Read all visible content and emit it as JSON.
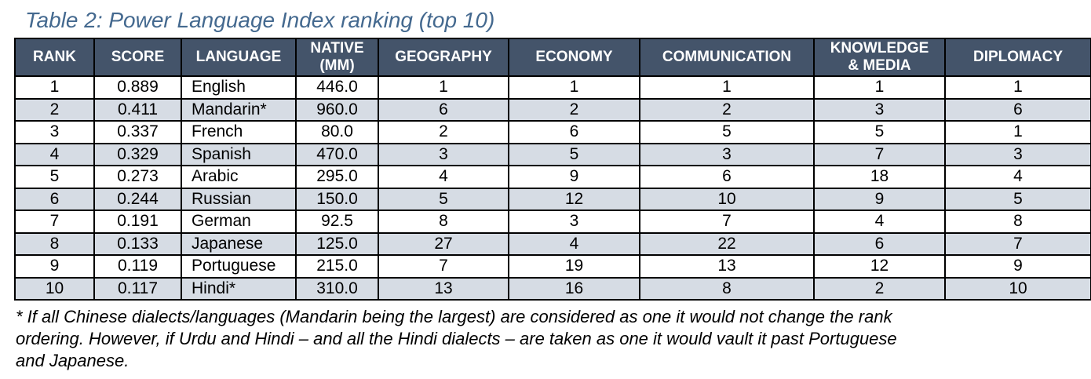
{
  "title": "Table 2: Power Language Index ranking (top 10)",
  "table": {
    "columns": [
      {
        "label": "RANK"
      },
      {
        "label": "SCORE"
      },
      {
        "label": "LANGUAGE"
      },
      {
        "label": "NATIVE\n(MM)"
      },
      {
        "label": "GEOGRAPHY"
      },
      {
        "label": "ECONOMY"
      },
      {
        "label": "COMMUNICATION"
      },
      {
        "label": "KNOWLEDGE\n& MEDIA"
      },
      {
        "label": "DIPLOMACY"
      }
    ],
    "rows": [
      [
        "1",
        "0.889",
        "English",
        "446.0",
        "1",
        "1",
        "1",
        "1",
        "1"
      ],
      [
        "2",
        "0.411",
        "Mandarin*",
        "960.0",
        "6",
        "2",
        "2",
        "3",
        "6"
      ],
      [
        "3",
        "0.337",
        "French",
        "80.0",
        "2",
        "6",
        "5",
        "5",
        "1"
      ],
      [
        "4",
        "0.329",
        "Spanish",
        "470.0",
        "3",
        "5",
        "3",
        "7",
        "3"
      ],
      [
        "5",
        "0.273",
        "Arabic",
        "295.0",
        "4",
        "9",
        "6",
        "18",
        "4"
      ],
      [
        "6",
        "0.244",
        "Russian",
        "150.0",
        "5",
        "12",
        "10",
        "9",
        "5"
      ],
      [
        "7",
        "0.191",
        "German",
        "92.5",
        "8",
        "3",
        "7",
        "4",
        "8"
      ],
      [
        "8",
        "0.133",
        "Japanese",
        "125.0",
        "27",
        "4",
        "22",
        "6",
        "7"
      ],
      [
        "9",
        "0.119",
        "Portuguese",
        "215.0",
        "7",
        "19",
        "13",
        "12",
        "9"
      ],
      [
        "10",
        "0.117",
        "Hindi*",
        "310.0",
        "13",
        "16",
        "8",
        "2",
        "10"
      ]
    ]
  },
  "footnote": {
    "lines": [
      "* If all Chinese dialects/languages (Mandarin being the largest) are considered as one it would not change the rank",
      "ordering. However, if Urdu and Hindi – and all the Hindi dialects – are taken as one it would vault it past Portuguese",
      "and Japanese."
    ]
  },
  "colors": {
    "title_text": "#44698F",
    "header_bg": "#44546A",
    "header_text": "#FFFFFF",
    "row_bg": "#FFFFFF",
    "row_band_bg": "#D6DCE4",
    "border": "#000000",
    "body_text": "#000000"
  }
}
